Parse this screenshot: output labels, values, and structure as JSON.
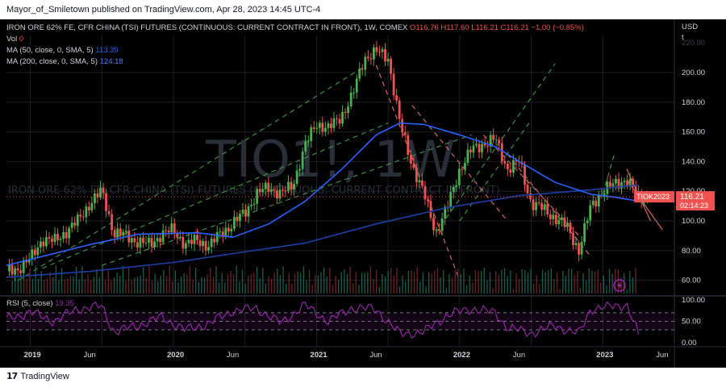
{
  "header": {
    "published_text": "Mayor_of_Smiletown published on TradingView.com, Apr 28, 2023 14:45 UTC-4"
  },
  "legend": {
    "symbol": "IRON ORE 62% FE, CFR CHINA (TSI) FUTURES (CONTINUOUS: CURRENT CONTRACT IN FRONT), 1W, COMEX",
    "open": "O116.76",
    "high": "H117.60",
    "low": "L116.21",
    "close": "C116.21",
    "change": "−1.00 (−0.85%)",
    "vol_label": "Vol",
    "vol_value": "0",
    "ma50_label": "MA (50, close, 0, SMA, 5)",
    "ma50_value": "113.39",
    "ma200_label": "MA (200, close, 0, SMA, 5)",
    "ma200_value": "124.18",
    "rsi_label": "RSI (5, close)",
    "rsi_value": "19.35"
  },
  "watermark": {
    "big": "TIO1!, 1W",
    "small": "IRON ORE 62% FE, CFR CHINA (TSI) FUTURES (CONTINUOUS: CURRENT CONTRACT IN FRONT)"
  },
  "price_axis": {
    "unit_line1": "USD",
    "unit_line2": "t",
    "ticks": [
      "200.00",
      "180.00",
      "160.00",
      "140.00",
      "120.00",
      "100.00",
      "80.00",
      "60.00"
    ],
    "ghost_top": "220.00"
  },
  "rsi_axis": {
    "ticks": [
      "100.00",
      "50.00",
      "0.00"
    ]
  },
  "time_axis": {
    "ticks": [
      "2019",
      "Jun",
      "2020",
      "Jun",
      "2021",
      "Jun",
      "2022",
      "Jun",
      "2023",
      "Jun"
    ]
  },
  "labels": {
    "ticker_tag": "TIOK2023",
    "last_price": "116.21",
    "countdown": "02:14:23"
  },
  "footer": {
    "brand": "TradingView"
  },
  "colors": {
    "up": "#26a69a",
    "down": "#ef5350",
    "up_candle": "#4caf50",
    "ma50": "#2962ff",
    "ma200": "#1e3fa8",
    "rsi": "#9c27b0",
    "channel_green": "#43a047",
    "channel_red": "#e57373",
    "orange_line": "#ff7043",
    "last_label": "#ef5350"
  },
  "chart_data": {
    "type": "candlestick",
    "title": "IRON ORE 62% FE, CFR CHINA (TSI) FUTURES (CONTINUOUS: CURRENT CONTRACT IN FRONT), 1W, COMEX",
    "ylim": [
      50,
      225
    ],
    "x_range": [
      "2018-11",
      "2023-07"
    ],
    "last_close": 116.21,
    "ma50_last": 113.39,
    "ma200_last": 124.18,
    "price_path": [
      {
        "date": "2018-11",
        "close": 66
      },
      {
        "date": "2018-12",
        "close": 68
      },
      {
        "date": "2019-01",
        "close": 74
      },
      {
        "date": "2019-02",
        "close": 88
      },
      {
        "date": "2019-03",
        "close": 86
      },
      {
        "date": "2019-04",
        "close": 93
      },
      {
        "date": "2019-05",
        "close": 100
      },
      {
        "date": "2019-06",
        "close": 112
      },
      {
        "date": "2019-07",
        "close": 120
      },
      {
        "date": "2019-08",
        "close": 92
      },
      {
        "date": "2019-09",
        "close": 90
      },
      {
        "date": "2019-10",
        "close": 86
      },
      {
        "date": "2019-11",
        "close": 84
      },
      {
        "date": "2019-12",
        "close": 91
      },
      {
        "date": "2020-01",
        "close": 94
      },
      {
        "date": "2020-02",
        "close": 84
      },
      {
        "date": "2020-03",
        "close": 87
      },
      {
        "date": "2020-04",
        "close": 83
      },
      {
        "date": "2020-05",
        "close": 92
      },
      {
        "date": "2020-06",
        "close": 98
      },
      {
        "date": "2020-07",
        "close": 106
      },
      {
        "date": "2020-08",
        "close": 118
      },
      {
        "date": "2020-09",
        "close": 123
      },
      {
        "date": "2020-10",
        "close": 118
      },
      {
        "date": "2020-11",
        "close": 124
      },
      {
        "date": "2020-12",
        "close": 150
      },
      {
        "date": "2021-01",
        "close": 166
      },
      {
        "date": "2021-02",
        "close": 162
      },
      {
        "date": "2021-03",
        "close": 170
      },
      {
        "date": "2021-04",
        "close": 184
      },
      {
        "date": "2021-05",
        "close": 210
      },
      {
        "date": "2021-06",
        "close": 214
      },
      {
        "date": "2021-07",
        "close": 210
      },
      {
        "date": "2021-08",
        "close": 165
      },
      {
        "date": "2021-09",
        "close": 138
      },
      {
        "date": "2021-10",
        "close": 118
      },
      {
        "date": "2021-11",
        "close": 92
      },
      {
        "date": "2021-12",
        "close": 110
      },
      {
        "date": "2022-01",
        "close": 135
      },
      {
        "date": "2022-02",
        "close": 148
      },
      {
        "date": "2022-03",
        "close": 152
      },
      {
        "date": "2022-04",
        "close": 155
      },
      {
        "date": "2022-05",
        "close": 135
      },
      {
        "date": "2022-06",
        "close": 140
      },
      {
        "date": "2022-07",
        "close": 112
      },
      {
        "date": "2022-08",
        "close": 108
      },
      {
        "date": "2022-09",
        "close": 102
      },
      {
        "date": "2022-10",
        "close": 96
      },
      {
        "date": "2022-11",
        "close": 80
      },
      {
        "date": "2022-12",
        "close": 110
      },
      {
        "date": "2023-01",
        "close": 120
      },
      {
        "date": "2023-02",
        "close": 125
      },
      {
        "date": "2023-03",
        "close": 128
      },
      {
        "date": "2023-04",
        "close": 116.21
      }
    ],
    "ma50_path": [
      {
        "date": "2018-11",
        "value": 70
      },
      {
        "date": "2019-06",
        "value": 84
      },
      {
        "date": "2019-10",
        "value": 91
      },
      {
        "date": "2020-03",
        "value": 92
      },
      {
        "date": "2020-06",
        "value": 89
      },
      {
        "date": "2020-09",
        "value": 98
      },
      {
        "date": "2020-12",
        "value": 113
      },
      {
        "date": "2021-03",
        "value": 134
      },
      {
        "date": "2021-06",
        "value": 158
      },
      {
        "date": "2021-08",
        "value": 166
      },
      {
        "date": "2021-10",
        "value": 165
      },
      {
        "date": "2022-01",
        "value": 158
      },
      {
        "date": "2022-04",
        "value": 150
      },
      {
        "date": "2022-06",
        "value": 140
      },
      {
        "date": "2022-09",
        "value": 126
      },
      {
        "date": "2022-12",
        "value": 118
      },
      {
        "date": "2023-02",
        "value": 116
      },
      {
        "date": "2023-04",
        "value": 113.39
      }
    ],
    "ma200_path": [
      {
        "date": "2018-11",
        "value": 62
      },
      {
        "date": "2019-06",
        "value": 66
      },
      {
        "date": "2020-01",
        "value": 72
      },
      {
        "date": "2020-06",
        "value": 78
      },
      {
        "date": "2020-12",
        "value": 85
      },
      {
        "date": "2021-06",
        "value": 98
      },
      {
        "date": "2021-12",
        "value": 109
      },
      {
        "date": "2022-06",
        "value": 117
      },
      {
        "date": "2022-12",
        "value": 121
      },
      {
        "date": "2023-04",
        "value": 124.18
      }
    ],
    "rsi_ylim": [
      0,
      100
    ],
    "rsi_levels": [
      70,
      50,
      30
    ],
    "rsi_path": [
      {
        "date": "2018-11",
        "value": 55
      },
      {
        "date": "2019-01",
        "value": 72
      },
      {
        "date": "2019-03",
        "value": 50
      },
      {
        "date": "2019-05",
        "value": 80
      },
      {
        "date": "2019-07",
        "value": 85
      },
      {
        "date": "2019-08",
        "value": 25
      },
      {
        "date": "2019-10",
        "value": 40
      },
      {
        "date": "2019-12",
        "value": 60
      },
      {
        "date": "2020-02",
        "value": 30
      },
      {
        "date": "2020-04",
        "value": 45
      },
      {
        "date": "2020-06",
        "value": 75
      },
      {
        "date": "2020-08",
        "value": 80
      },
      {
        "date": "2020-10",
        "value": 45
      },
      {
        "date": "2020-12",
        "value": 88
      },
      {
        "date": "2021-02",
        "value": 50
      },
      {
        "date": "2021-04",
        "value": 82
      },
      {
        "date": "2021-06",
        "value": 78
      },
      {
        "date": "2021-08",
        "value": 20
      },
      {
        "date": "2021-10",
        "value": 25
      },
      {
        "date": "2021-12",
        "value": 65
      },
      {
        "date": "2022-02",
        "value": 80
      },
      {
        "date": "2022-04",
        "value": 70
      },
      {
        "date": "2022-05",
        "value": 35
      },
      {
        "date": "2022-07",
        "value": 22
      },
      {
        "date": "2022-09",
        "value": 40
      },
      {
        "date": "2022-11",
        "value": 20
      },
      {
        "date": "2022-12",
        "value": 80
      },
      {
        "date": "2023-02",
        "value": 85
      },
      {
        "date": "2023-03",
        "value": 90
      },
      {
        "date": "2023-04",
        "value": 19.35
      }
    ]
  }
}
